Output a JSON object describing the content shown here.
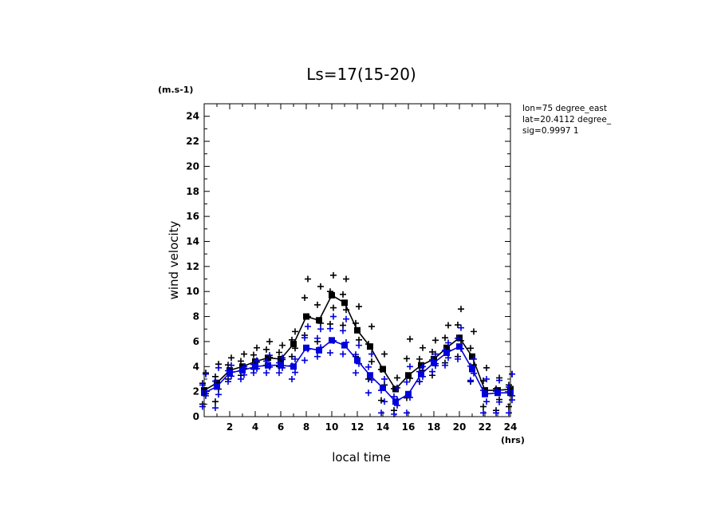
{
  "chart_data": {
    "type": "line",
    "title": "Ls=17(15-20)",
    "y_unit": "(m.s-1)",
    "x_unit": "(hrs)",
    "xlabel": "local time",
    "ylabel": "wind velocity",
    "xlim": [
      0,
      24
    ],
    "ylim": [
      0,
      25
    ],
    "x_ticks": [
      2,
      4,
      6,
      8,
      10,
      12,
      14,
      16,
      18,
      20,
      22,
      24
    ],
    "y_ticks": [
      0,
      2,
      4,
      6,
      8,
      10,
      12,
      14,
      16,
      18,
      20,
      22,
      24
    ],
    "grid": false,
    "annotations": [
      "lon=75 degree_east",
      "lat=20.4112 degree_",
      "sig=0.9997 1"
    ],
    "series": [
      {
        "color": "#000000",
        "x": [
          0,
          1,
          2,
          3,
          4,
          5,
          6,
          7,
          8,
          9,
          10,
          11,
          12,
          13,
          14,
          15,
          16,
          17,
          18,
          19,
          20,
          21,
          22,
          23,
          24
        ],
        "values": [
          2.1,
          2.7,
          3.7,
          4.0,
          4.4,
          4.7,
          4.6,
          5.8,
          8.0,
          7.7,
          9.7,
          9.1,
          6.9,
          5.6,
          3.8,
          2.2,
          3.3,
          4.1,
          4.6,
          5.5,
          6.3,
          4.8,
          2.1,
          2.1,
          2.2
        ],
        "spread": [
          [
            1.0,
            3.5
          ],
          [
            1.2,
            4.2
          ],
          [
            3.0,
            4.7
          ],
          [
            3.3,
            5.0
          ],
          [
            3.8,
            5.5
          ],
          [
            4.1,
            6.0
          ],
          [
            4.0,
            5.7
          ],
          [
            4.8,
            6.8
          ],
          [
            6.5,
            11.0
          ],
          [
            6.0,
            10.4
          ],
          [
            7.4,
            11.3
          ],
          [
            7.3,
            11.0
          ],
          [
            4.8,
            8.8
          ],
          [
            3.0,
            7.2
          ],
          [
            1.3,
            5.0
          ],
          [
            0.5,
            3.1
          ],
          [
            1.5,
            6.2
          ],
          [
            2.8,
            5.5
          ],
          [
            3.3,
            6.1
          ],
          [
            4.3,
            7.3
          ],
          [
            4.8,
            8.6
          ],
          [
            2.8,
            6.8
          ],
          [
            0.8,
            3.9
          ],
          [
            0.5,
            3.1
          ],
          [
            0.8,
            3.4
          ]
        ]
      },
      {
        "color": "#0000dd",
        "x": [
          0,
          1,
          2,
          3,
          4,
          5,
          6,
          7,
          8,
          9,
          10,
          11,
          12,
          13,
          14,
          15,
          16,
          17,
          18,
          19,
          20,
          21,
          22,
          23,
          24
        ],
        "values": [
          1.9,
          2.4,
          3.5,
          3.7,
          4.0,
          4.1,
          4.1,
          4.0,
          5.5,
          5.3,
          6.1,
          5.7,
          4.5,
          3.3,
          2.3,
          1.2,
          1.8,
          3.4,
          4.3,
          5.1,
          5.6,
          3.8,
          1.8,
          1.9,
          1.9
        ],
        "spread": [
          [
            0.8,
            3.4
          ],
          [
            0.7,
            3.9
          ],
          [
            2.8,
            4.1
          ],
          [
            3.0,
            4.0
          ],
          [
            3.5,
            4.5
          ],
          [
            3.5,
            4.9
          ],
          [
            3.5,
            4.7
          ],
          [
            3.0,
            4.6
          ],
          [
            4.5,
            7.2
          ],
          [
            4.8,
            7.0
          ],
          [
            5.1,
            8.0
          ],
          [
            5.0,
            7.8
          ],
          [
            3.5,
            5.7
          ],
          [
            1.9,
            5.0
          ],
          [
            0.3,
            3.0
          ],
          [
            0.2,
            2.3
          ],
          [
            0.3,
            4.0
          ],
          [
            2.8,
            4.0
          ],
          [
            3.6,
            5.0
          ],
          [
            4.1,
            5.9
          ],
          [
            4.6,
            7.1
          ],
          [
            2.9,
            4.6
          ],
          [
            0.3,
            3.0
          ],
          [
            0.3,
            2.9
          ],
          [
            0.3,
            3.4
          ]
        ]
      }
    ]
  }
}
